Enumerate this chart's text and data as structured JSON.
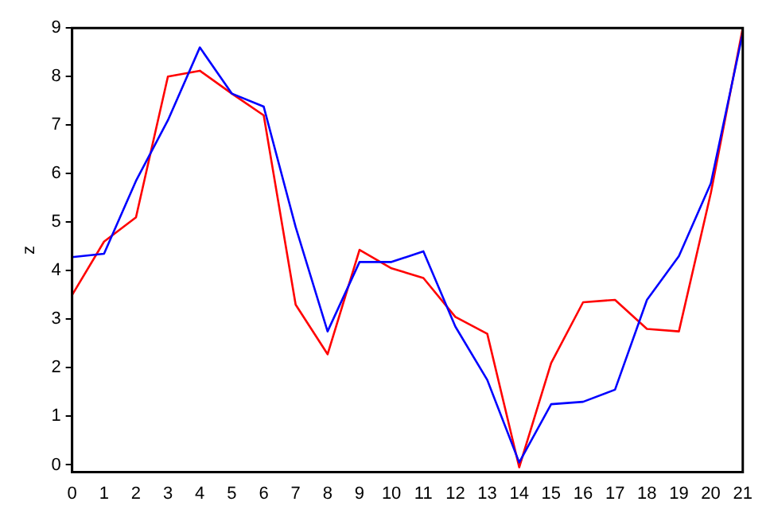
{
  "chart_data": {
    "type": "line",
    "ylabel": "z",
    "x": [
      0,
      1,
      2,
      3,
      4,
      5,
      6,
      7,
      8,
      9,
      10,
      11,
      12,
      13,
      14,
      15,
      16,
      17,
      18,
      19,
      20,
      21
    ],
    "series": [
      {
        "color": "#0000ff",
        "values": [
          4.28,
          4.35,
          5.85,
          7.1,
          8.6,
          7.65,
          7.38,
          4.9,
          2.75,
          4.18,
          4.18,
          4.4,
          2.85,
          1.75,
          0.05,
          1.25,
          1.3,
          1.55,
          3.4,
          4.3,
          5.8,
          8.9
        ]
      },
      {
        "color": "#ff0000",
        "values": [
          3.5,
          4.6,
          5.1,
          8.0,
          8.12,
          7.65,
          7.2,
          3.3,
          2.28,
          4.43,
          4.05,
          3.85,
          3.05,
          2.7,
          -0.05,
          2.1,
          3.35,
          3.4,
          2.8,
          2.75,
          5.6,
          9.0
        ]
      }
    ],
    "xlim": [
      0,
      21
    ],
    "xticks": [
      0,
      1,
      2,
      3,
      4,
      5,
      6,
      7,
      8,
      9,
      10,
      11,
      12,
      13,
      14,
      15,
      16,
      17,
      18,
      19,
      20,
      21
    ],
    "ylim": [
      -0.15,
      9
    ],
    "yticks": [
      0,
      1,
      2,
      3,
      4,
      5,
      6,
      7,
      8,
      9
    ],
    "grid": false,
    "legend": false,
    "marker": "none",
    "line_style": "solid"
  }
}
